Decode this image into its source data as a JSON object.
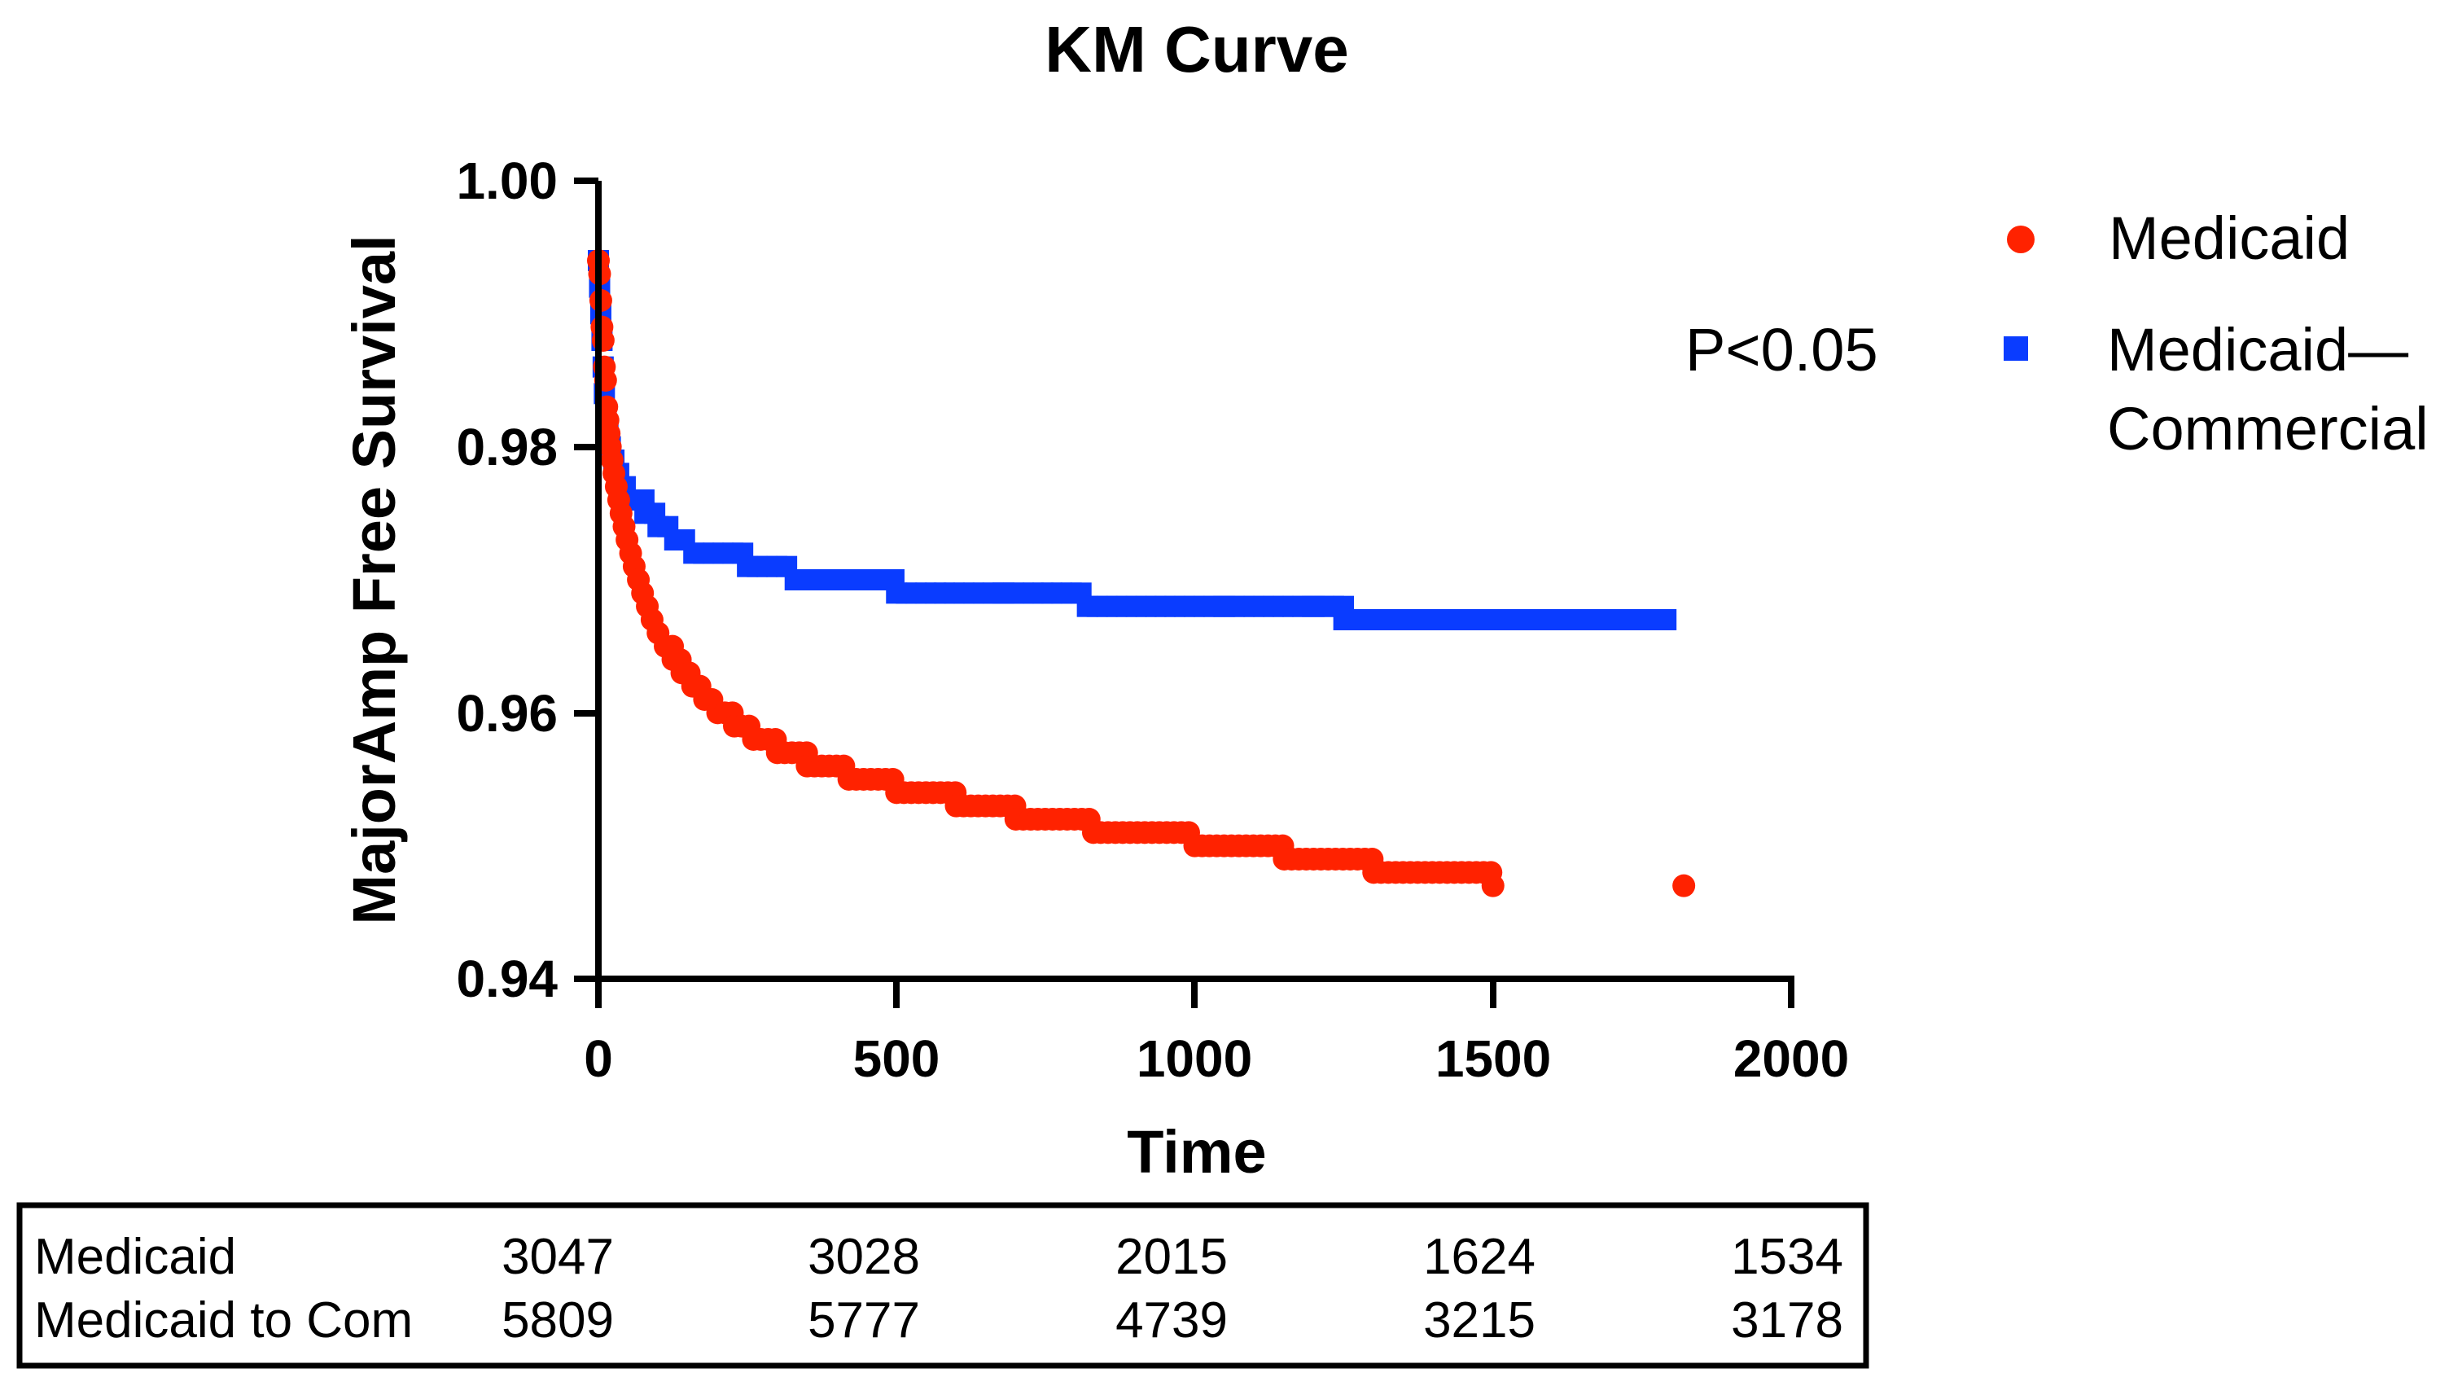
{
  "chart_data": {
    "type": "scatter",
    "title": "KM Curve",
    "xlabel": "Time",
    "ylabel": "MajorAmp Free Survival",
    "xlim": [
      0,
      2000
    ],
    "ylim": [
      0.94,
      1.0
    ],
    "xticks": [
      "0",
      "500",
      "1000",
      "1500",
      "2000"
    ],
    "yticks": [
      "0.94",
      "0.96",
      "0.98",
      "1.00"
    ],
    "grid": false,
    "legend_position": "top-right",
    "annotation": "P<0.05",
    "series": [
      {
        "name": "Medicaid",
        "marker": "circle",
        "color": "#ff2200",
        "points": [
          [
            0,
            0.994
          ],
          [
            2,
            0.993
          ],
          [
            4,
            0.991
          ],
          [
            6,
            0.989
          ],
          [
            8,
            0.988
          ],
          [
            10,
            0.986
          ],
          [
            12,
            0.985
          ],
          [
            14,
            0.983
          ],
          [
            16,
            0.982
          ],
          [
            18,
            0.981
          ],
          [
            20,
            0.98
          ],
          [
            23,
            0.979
          ],
          [
            26,
            0.978
          ],
          [
            30,
            0.977
          ],
          [
            34,
            0.976
          ],
          [
            38,
            0.975
          ],
          [
            43,
            0.974
          ],
          [
            48,
            0.973
          ],
          [
            54,
            0.972
          ],
          [
            60,
            0.971
          ],
          [
            67,
            0.97
          ],
          [
            74,
            0.969
          ],
          [
            82,
            0.968
          ],
          [
            90,
            0.967
          ],
          [
            100,
            0.966
          ],
          [
            112,
            0.965
          ],
          [
            125,
            0.964
          ],
          [
            140,
            0.963
          ],
          [
            158,
            0.962
          ],
          [
            178,
            0.961
          ],
          [
            200,
            0.96
          ],
          [
            228,
            0.959
          ],
          [
            260,
            0.958
          ],
          [
            300,
            0.957
          ],
          [
            350,
            0.956
          ],
          [
            420,
            0.955
          ],
          [
            500,
            0.954
          ],
          [
            600,
            0.953
          ],
          [
            700,
            0.952
          ],
          [
            830,
            0.951
          ],
          [
            1000,
            0.95
          ],
          [
            1150,
            0.949
          ],
          [
            1300,
            0.948
          ],
          [
            1500,
            0.947
          ],
          [
            1820,
            0.947
          ]
        ]
      },
      {
        "name": "Medicaid—\nCommercial",
        "legend_lines": [
          "Medicaid—",
          "Commercial"
        ],
        "marker": "square",
        "color": "#0a3cff",
        "points": [
          [
            0,
            0.994
          ],
          [
            2,
            0.992
          ],
          [
            4,
            0.99
          ],
          [
            6,
            0.988
          ],
          [
            8,
            0.986
          ],
          [
            10,
            0.984
          ],
          [
            13,
            0.982
          ],
          [
            16,
            0.981
          ],
          [
            20,
            0.98
          ],
          [
            26,
            0.979
          ],
          [
            34,
            0.978
          ],
          [
            45,
            0.977
          ],
          [
            60,
            0.976
          ],
          [
            78,
            0.975
          ],
          [
            100,
            0.974
          ],
          [
            128,
            0.973
          ],
          [
            160,
            0.972
          ],
          [
            250,
            0.971
          ],
          [
            330,
            0.97
          ],
          [
            430,
            0.97
          ],
          [
            500,
            0.969
          ],
          [
            580,
            0.969
          ],
          [
            680,
            0.969
          ],
          [
            760,
            0.969
          ],
          [
            820,
            0.968
          ],
          [
            950,
            0.968
          ],
          [
            1050,
            0.968
          ],
          [
            1200,
            0.968
          ],
          [
            1250,
            0.967
          ],
          [
            1290,
            0.967
          ],
          [
            1400,
            0.967
          ],
          [
            1480,
            0.967
          ],
          [
            1640,
            0.967
          ],
          [
            1740,
            0.967
          ],
          [
            1790,
            0.967
          ]
        ]
      }
    ]
  },
  "risk_table": {
    "rows": [
      {
        "label": "Medicaid",
        "values": [
          "3047",
          "3028",
          "2015",
          "1624",
          "1534"
        ]
      },
      {
        "label": "Medicaid to Com",
        "values": [
          "5809",
          "5777",
          "4739",
          "3215",
          "3178"
        ]
      }
    ]
  }
}
